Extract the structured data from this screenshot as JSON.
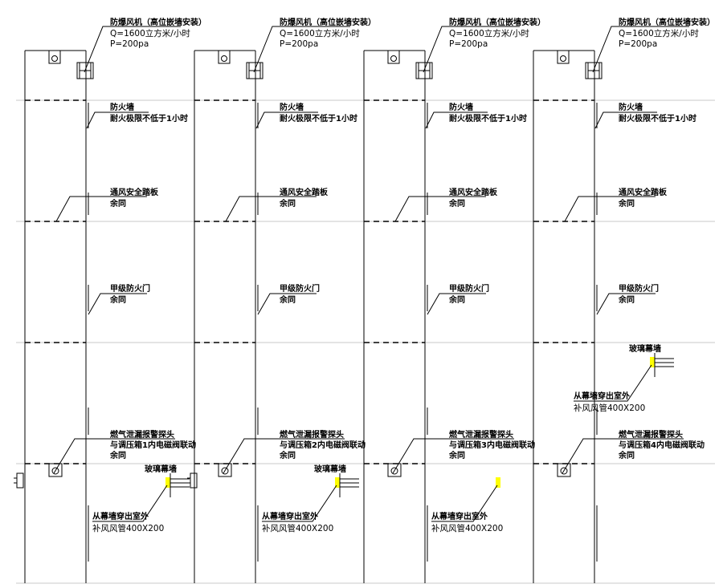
{
  "drawing": {
    "fan": {
      "title": "防爆风机（高位嵌墙安装）",
      "flow": "Q=1600立方米/小时",
      "pressure": "P=200pa"
    },
    "firewall": {
      "title": "防火墙",
      "note": "耐火极限不低于1小时"
    },
    "pedal": {
      "title": "通风安全踏板",
      "note": "余同"
    },
    "door": {
      "title": "甲级防火门",
      "note": "余同"
    },
    "curtain_wall": "玻璃幕墙",
    "duct": {
      "line1": "从幕墙穿出室外",
      "line2": "补风风管400X200"
    },
    "columns": [
      {
        "detector": {
          "title": "燃气泄漏报警探头",
          "link": "与调压箱1内电磁阀联动",
          "note": "余同"
        },
        "curtain_label": true,
        "duct_position": "bottom"
      },
      {
        "detector": {
          "title": "燃气泄漏报警探头",
          "link": "与调压箱2内电磁阀联动",
          "note": "余同"
        },
        "curtain_label": true,
        "duct_position": "bottom"
      },
      {
        "detector": {
          "title": "燃气泄漏报警探头",
          "link": "与调压箱3内电磁阀联动",
          "note": "余同"
        },
        "curtain_label": false,
        "duct_position": "bottom"
      },
      {
        "detector": {
          "title": "燃气泄漏报警探头",
          "link": "与调压箱4内电磁阀联动",
          "note": "余同"
        },
        "curtain_label": true,
        "duct_position": "upper"
      }
    ],
    "colors": {
      "line": "#000000",
      "grid": "#c8c8c8",
      "highlight": "#ffff00"
    }
  }
}
